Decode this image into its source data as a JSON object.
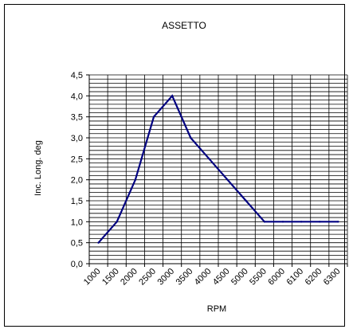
{
  "chart_data": {
    "type": "line",
    "title": "ASSETTO",
    "xlabel": "RPM",
    "ylabel": "Inc. Long. deg",
    "categories": [
      "1000",
      "1500",
      "2000",
      "2500",
      "3000",
      "3500",
      "4000",
      "4500",
      "5000",
      "5500",
      "6000",
      "6100",
      "6200",
      "6300"
    ],
    "y_tick_labels": [
      "0,0",
      "0,5",
      "1,0",
      "1,5",
      "2,0",
      "2,5",
      "3,0",
      "3,5",
      "4,0",
      "4,5"
    ],
    "series": [
      {
        "values": [
          0.5,
          1.0,
          2.0,
          3.5,
          4.0,
          3.0,
          2.5,
          2.0,
          1.5,
          1.0,
          1.0,
          1.0,
          1.0,
          1.0
        ]
      }
    ],
    "ylim": [
      0,
      4.5
    ],
    "y_major_step": 0.5,
    "y_minor_step": 0.1,
    "grid": true,
    "legend": "none",
    "line_color": "#000080",
    "grid_color": "#000000"
  }
}
